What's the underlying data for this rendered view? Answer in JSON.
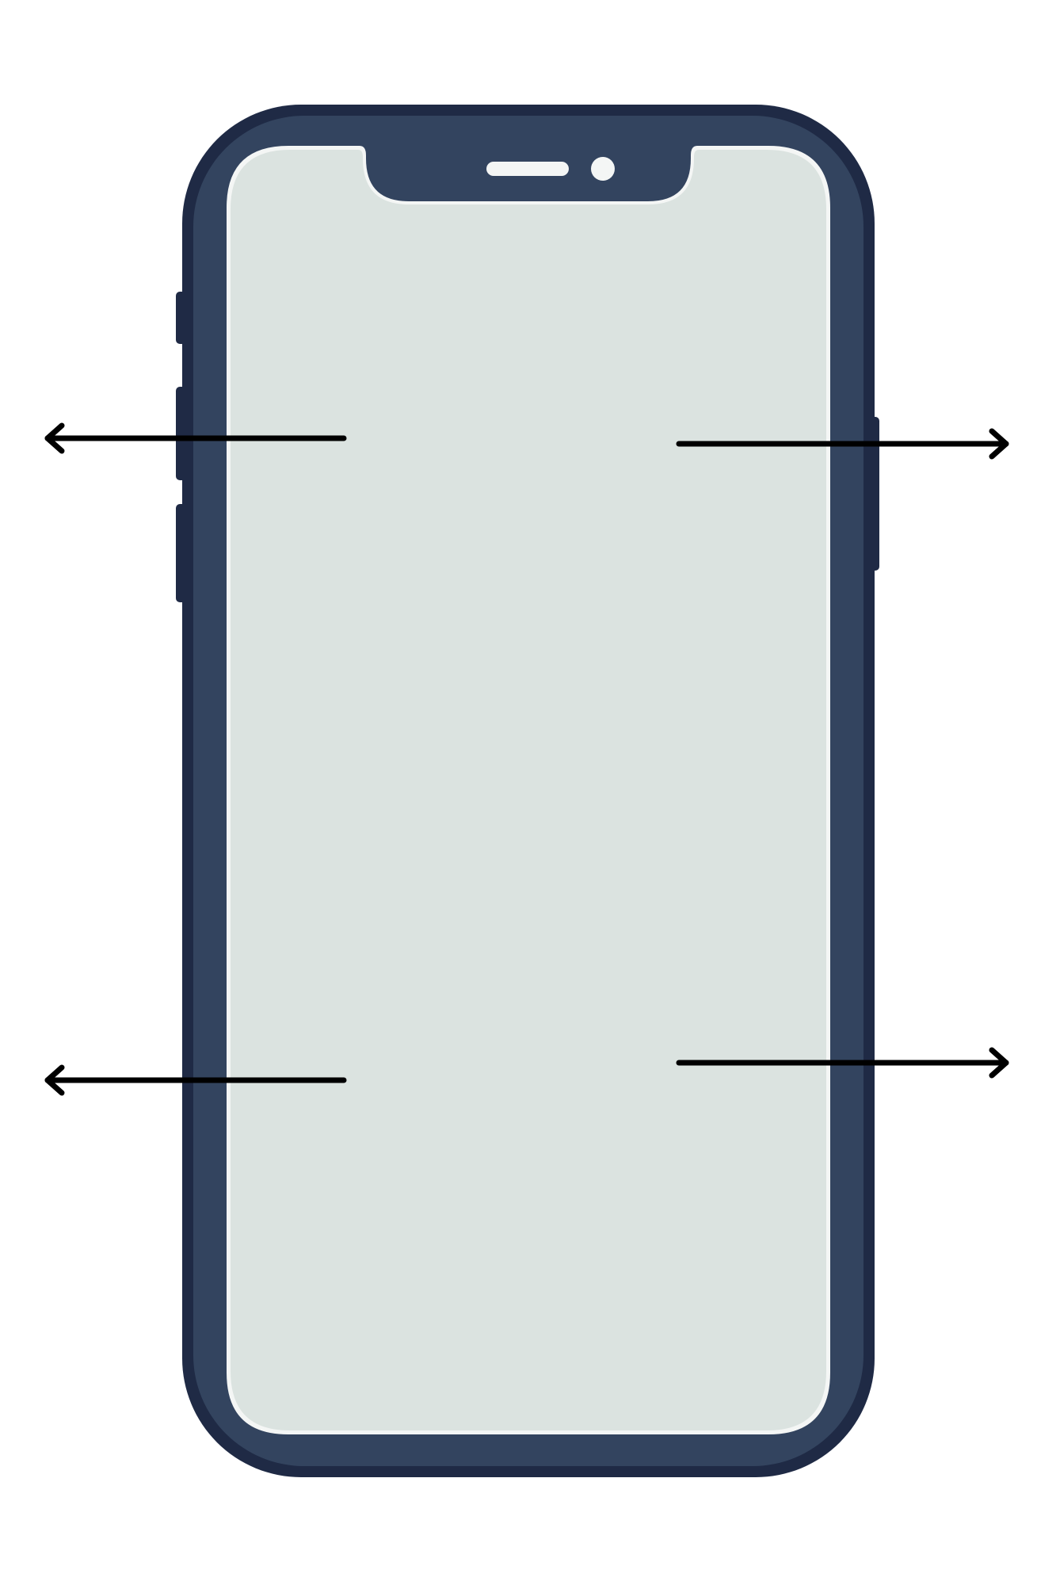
{
  "colors": {
    "background": "#ffffff",
    "frame_outer": "#1f2a45",
    "frame_inner": "#33445f",
    "screen": "#dbe3e0",
    "screen_rim": "#f4f6f5",
    "speaker": "#f4f6f5",
    "arrow": "#000000"
  },
  "icons": {
    "phone": "smartphone-outline-icon",
    "arrow_left": "arrow-left-icon",
    "arrow_right": "arrow-right-icon"
  },
  "arrows": [
    {
      "id": "top-left",
      "direction": "left"
    },
    {
      "id": "top-right",
      "direction": "right"
    },
    {
      "id": "bottom-left",
      "direction": "left"
    },
    {
      "id": "bottom-right",
      "direction": "right"
    }
  ]
}
